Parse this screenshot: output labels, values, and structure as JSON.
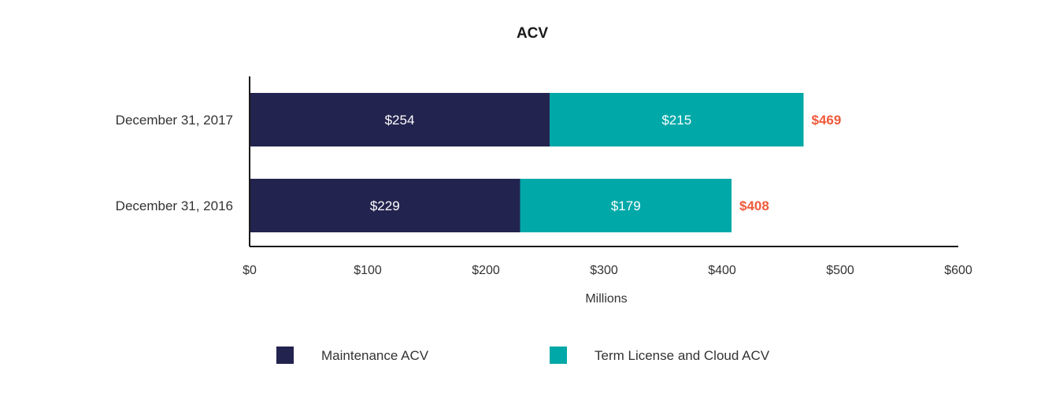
{
  "chart_data": {
    "type": "bar",
    "orientation": "horizontal",
    "stacked": true,
    "title": "ACV",
    "xlabel": "Millions",
    "ylabel": "",
    "xlim": [
      0,
      600
    ],
    "x_ticks": [
      0,
      100,
      200,
      300,
      400,
      500,
      600
    ],
    "x_tick_labels": [
      "$0",
      "$100",
      "$200",
      "$300",
      "$400",
      "$500",
      "$600"
    ],
    "categories": [
      "December 31, 2017",
      "December 31, 2016"
    ],
    "series": [
      {
        "name": "Maintenance ACV",
        "color": "#23234f",
        "values": [
          254,
          229
        ],
        "labels": [
          "$254",
          "$229"
        ]
      },
      {
        "name": "Term License and Cloud ACV",
        "color": "#00a8a8",
        "values": [
          215,
          179
        ],
        "labels": [
          "$215",
          "$179"
        ]
      }
    ],
    "totals": [
      469,
      408
    ],
    "total_labels": [
      "$469",
      "$408"
    ],
    "total_color": "#ef5a3a",
    "grid": false,
    "legend_position": "bottom"
  }
}
